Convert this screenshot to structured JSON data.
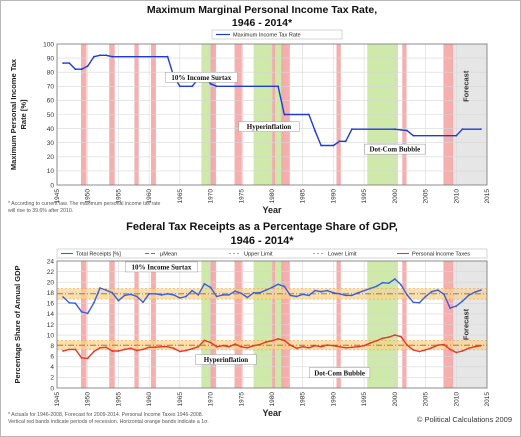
{
  "chart_data": [
    {
      "type": "line",
      "title": "Maximum Marginal Personal Income Tax Rate,",
      "subtitle": "1946 - 2014*",
      "xlabel": "Year",
      "ylabel": "Maximum Personal Income Tax Rate [%]",
      "xlim": [
        1945,
        2015
      ],
      "ylim": [
        0,
        100
      ],
      "xticks": [
        1945,
        1950,
        1955,
        1960,
        1965,
        1970,
        1975,
        1980,
        1985,
        1990,
        1995,
        2000,
        2005,
        2010,
        2015
      ],
      "yticks": [
        0,
        10,
        20,
        30,
        40,
        50,
        60,
        70,
        80,
        90,
        100
      ],
      "grid": true,
      "legend": "top-right",
      "series": [
        {
          "name": "Maximum Income Tax Rate",
          "color": "#1f3bd6",
          "x": [
            1946,
            1947,
            1948,
            1949,
            1950,
            1951,
            1952,
            1953,
            1954,
            1963,
            1964,
            1965,
            1967,
            1968,
            1969,
            1970,
            1971,
            1981,
            1982,
            1986,
            1987,
            1988,
            1990,
            1991,
            1992,
            1993,
            2000,
            2001,
            2002,
            2003,
            2010,
            2011,
            2014
          ],
          "y": [
            86.45,
            86.45,
            82.13,
            82.13,
            84.36,
            91,
            92,
            92,
            91,
            91,
            77,
            70,
            70,
            75.25,
            77,
            71.75,
            70,
            70,
            50,
            50,
            38.5,
            28,
            28,
            31,
            31,
            39.6,
            39.6,
            39.1,
            38.6,
            35,
            35,
            39.6,
            39.6
          ]
        }
      ],
      "annotations": [
        {
          "text": "10% Income Surtax",
          "x": 1968.5,
          "y": 75
        },
        {
          "text": "Hyperinflation",
          "x": 1979.5,
          "y": 40
        },
        {
          "text": "Dot-Com Bubble",
          "x": 2000,
          "y": 24
        },
        {
          "text": "Forecast",
          "x": 2012,
          "y": 70
        }
      ],
      "forecast_start": 2009,
      "footnote": "* According to current law.  The maximum personal income tax rate will rise to 39.6% after 2010."
    },
    {
      "type": "line",
      "title": "Federal Tax Receipts as a Percentage Share of GDP,",
      "subtitle": "1946 - 2014*",
      "xlabel": "Year",
      "ylabel": "Percentage Share of Annual GDP",
      "xlim": [
        1945,
        2015
      ],
      "ylim": [
        0,
        24
      ],
      "xticks": [
        1945,
        1950,
        1955,
        1960,
        1965,
        1970,
        1975,
        1980,
        1985,
        1990,
        1995,
        2000,
        2005,
        2010,
        2015
      ],
      "yticks": [
        0,
        2,
        4,
        6,
        8,
        10,
        12,
        14,
        16,
        18,
        20,
        22,
        24
      ],
      "grid": true,
      "legend": "top",
      "legend_entries": [
        "Total Receipts [%]",
        "μMean",
        "Upper Limit",
        "Lower Limit",
        "Personal Income Taxes"
      ],
      "total_mean": 17.8,
      "total_band": [
        16.8,
        18.8
      ],
      "pit_mean": 8.1,
      "pit_band": [
        7.2,
        9.0
      ],
      "series": [
        {
          "name": "Total Receipts [%]",
          "color": "#3a5fd9",
          "x": [
            1946,
            1947,
            1948,
            1949,
            1950,
            1951,
            1952,
            1953,
            1954,
            1955,
            1956,
            1957,
            1958,
            1959,
            1960,
            1961,
            1962,
            1963,
            1964,
            1965,
            1966,
            1967,
            1968,
            1969,
            1970,
            1971,
            1972,
            1973,
            1974,
            1975,
            1976,
            1977,
            1978,
            1979,
            1980,
            1981,
            1982,
            1983,
            1984,
            1985,
            1986,
            1987,
            1988,
            1989,
            1990,
            1991,
            1992,
            1993,
            1994,
            1995,
            1996,
            1997,
            1998,
            1999,
            2000,
            2001,
            2002,
            2003,
            2004,
            2005,
            2006,
            2007,
            2008,
            2009,
            2010,
            2011,
            2012,
            2013,
            2014
          ],
          "y": [
            17.2,
            16.1,
            16.0,
            14.4,
            14.1,
            16.1,
            18.9,
            18.5,
            18.0,
            16.5,
            17.5,
            17.7,
            17.3,
            16.2,
            17.8,
            17.8,
            17.6,
            17.8,
            17.6,
            17.0,
            17.3,
            18.4,
            17.6,
            19.7,
            19.0,
            17.3,
            17.6,
            17.6,
            18.3,
            17.9,
            17.1,
            18.0,
            18.0,
            18.5,
            19.0,
            19.6,
            19.2,
            17.5,
            17.3,
            17.7,
            17.5,
            18.4,
            18.2,
            18.4,
            18.0,
            17.8,
            17.5,
            17.5,
            18.0,
            18.4,
            18.8,
            19.2,
            19.9,
            19.8,
            20.6,
            19.5,
            17.6,
            16.2,
            16.1,
            17.3,
            18.2,
            18.5,
            17.7,
            15.1,
            15.5,
            16.4,
            17.5,
            18.1,
            18.5
          ]
        },
        {
          "name": "Personal Income Taxes",
          "color": "#e23a2a",
          "x": [
            1946,
            1947,
            1948,
            1949,
            1950,
            1951,
            1952,
            1953,
            1954,
            1955,
            1956,
            1957,
            1958,
            1959,
            1960,
            1961,
            1962,
            1963,
            1964,
            1965,
            1966,
            1967,
            1968,
            1969,
            1970,
            1971,
            1972,
            1973,
            1974,
            1975,
            1976,
            1977,
            1978,
            1979,
            1980,
            1981,
            1982,
            1983,
            1984,
            1985,
            1986,
            1987,
            1988,
            1989,
            1990,
            1991,
            1992,
            1993,
            1994,
            1995,
            1996,
            1997,
            1998,
            1999,
            2000,
            2001,
            2002,
            2003,
            2004,
            2005,
            2006,
            2007,
            2008,
            2009,
            2010,
            2011,
            2012,
            2013,
            2014
          ],
          "y": [
            7.0,
            7.3,
            7.3,
            5.7,
            5.6,
            6.9,
            7.6,
            7.7,
            7.0,
            7.0,
            7.3,
            7.5,
            7.1,
            7.3,
            7.7,
            7.7,
            7.8,
            7.8,
            7.5,
            6.9,
            7.1,
            7.4,
            7.8,
            9.0,
            8.6,
            7.8,
            8.0,
            7.8,
            8.3,
            7.8,
            7.6,
            8.0,
            8.2,
            8.7,
            8.9,
            9.3,
            9.0,
            8.1,
            7.5,
            7.8,
            7.6,
            8.0,
            7.8,
            8.1,
            8.0,
            7.8,
            7.6,
            7.7,
            7.8,
            8.0,
            8.5,
            8.9,
            9.4,
            9.6,
            10.0,
            9.7,
            8.1,
            7.2,
            6.9,
            7.2,
            7.6,
            8.1,
            8.2,
            7.3,
            6.7,
            7.0,
            7.5,
            7.8,
            8.0
          ]
        }
      ],
      "annotations": [
        {
          "text": "10% Income Surtax",
          "x": 1962,
          "y": 22.5
        },
        {
          "text": "Hyperinflation",
          "x": 1972.5,
          "y": 5
        },
        {
          "text": "Dot-Com Bubble",
          "x": 1991,
          "y": 2.5
        },
        {
          "text": "Forecast",
          "x": 2012,
          "y": 12
        }
      ],
      "forecast_start": 2009,
      "footnote": "* Actuals for 1946-2008, Forecast for 2009-2014. Personal Income Taxes 1946-2008. Vertical red bands indicate periods of recession. Horizontal orange bands indicate a 1σ."
    }
  ],
  "recessions": [
    [
      1948.9,
      1949.8
    ],
    [
      1953.5,
      1954.4
    ],
    [
      1957.6,
      1958.3
    ],
    [
      1960.3,
      1961.1
    ],
    [
      1969.9,
      1970.9
    ],
    [
      1973.9,
      1975.2
    ],
    [
      1980.0,
      1980.5
    ],
    [
      1981.5,
      1982.9
    ],
    [
      1990.5,
      1991.2
    ],
    [
      2001.2,
      2001.9
    ],
    [
      2007.9,
      2009.5
    ]
  ],
  "policy_periods": {
    "surtax": [
      1968.5,
      1970.5
    ],
    "hyperinflation": [
      1977.0,
      1982.0
    ],
    "dotcom": [
      1995.5,
      2000.5
    ]
  },
  "colors": {
    "recession": "#f4a6a6",
    "policy": "#c6e59a",
    "band": "#fcd28a",
    "forecast": "#e6e6e6",
    "grid": "#d8d8d8",
    "mean": "#9a9a9a"
  },
  "credit": "© Political Calculations 2009"
}
